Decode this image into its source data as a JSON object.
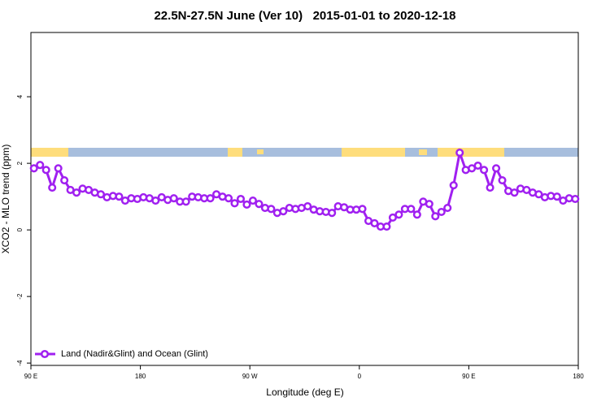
{
  "chart_data": {
    "type": "line",
    "title": "22.5N-27.5N June (Ver 10)   2015-01-01 to 2020-12-18",
    "x_label": "Longitude (deg E)",
    "y_label": "XCO2 - MLO trend (ppm)",
    "xlim": [
      90,
      540
    ],
    "xticks": [
      {
        "value": 90,
        "label": "90 E"
      },
      180,
      {
        "value": 270,
        "label": "90 W"
      },
      {
        "value": 360,
        "label": "0"
      },
      {
        "value": 450,
        "label": "90 E"
      },
      {
        "value": 540,
        "label": "180"
      }
    ],
    "ylim": [
      -4.07,
      5.93
    ],
    "yticks": [
      -4,
      -2,
      0,
      2,
      4
    ],
    "legend": "lower left",
    "x": [
      92.5,
      97.5,
      102.5,
      107.5,
      112.5,
      117.5,
      122.5,
      127.5,
      132.5,
      137.5,
      142.5,
      147.5,
      152.5,
      157.5,
      162.5,
      167.5,
      172.5,
      177.5,
      182.5,
      187.5,
      192.5,
      197.5,
      202.5,
      207.5,
      212.5,
      217.5,
      222.5,
      227.5,
      232.5,
      237.5,
      242.5,
      247.5,
      252.5,
      257.5,
      262.5,
      267.5,
      272.5,
      277.5,
      282.5,
      287.5,
      292.5,
      297.5,
      302.5,
      307.5,
      312.5,
      317.5,
      322.5,
      327.5,
      332.5,
      337.5,
      342.5,
      347.5,
      352.5,
      357.5,
      362.5,
      367.5,
      372.5,
      377.5,
      382.5,
      387.5,
      392.5,
      397.5,
      402.5,
      407.5,
      412.5,
      417.5,
      422.5,
      427.5,
      432.5,
      437.5,
      442.5,
      447.5,
      452.5,
      457.5,
      462.5,
      467.5,
      472.5,
      477.5,
      482.5,
      487.5,
      492.5,
      497.5,
      502.5,
      507.5,
      512.5,
      517.5,
      522.5,
      527.5,
      532.5,
      537.5
    ],
    "series": [
      {
        "name": "Land (Nadir&Glint) and Ocean (Glint)",
        "color": "#a020f0",
        "values": [
          1.85,
          1.95,
          1.8,
          1.27,
          1.85,
          1.49,
          1.2,
          1.12,
          1.24,
          1.2,
          1.12,
          1.07,
          0.98,
          1.02,
          1.0,
          0.88,
          0.95,
          0.93,
          0.98,
          0.95,
          0.88,
          0.98,
          0.9,
          0.95,
          0.85,
          0.85,
          1.0,
          0.98,
          0.95,
          0.95,
          1.07,
          1.0,
          0.95,
          0.8,
          0.93,
          0.76,
          0.88,
          0.78,
          0.66,
          0.63,
          0.51,
          0.56,
          0.66,
          0.63,
          0.66,
          0.71,
          0.61,
          0.56,
          0.54,
          0.51,
          0.71,
          0.68,
          0.61,
          0.61,
          0.63,
          0.27,
          0.2,
          0.1,
          0.1,
          0.37,
          0.46,
          0.63,
          0.63,
          0.46,
          0.85,
          0.78,
          0.41,
          0.54,
          0.66,
          1.34,
          2.32,
          1.8,
          1.85,
          1.93,
          1.8,
          1.27,
          1.85,
          1.49,
          1.17,
          1.12,
          1.24,
          1.2,
          1.12,
          1.07,
          0.98,
          1.02,
          1.0,
          0.88,
          0.95,
          0.93
        ]
      }
    ]
  }
}
